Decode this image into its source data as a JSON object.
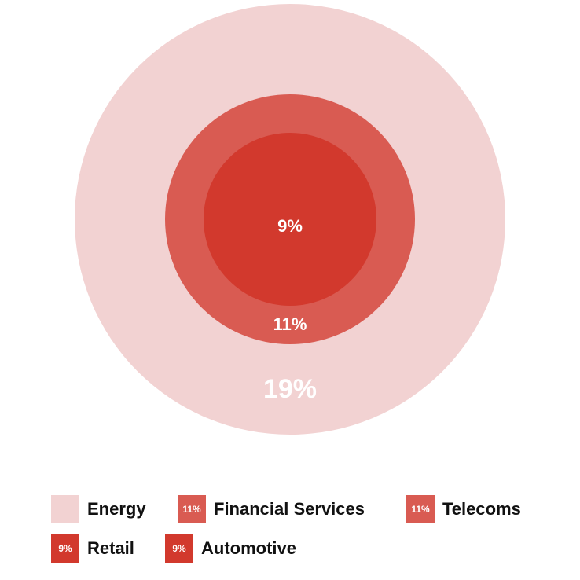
{
  "chart_data": {
    "type": "nested-circles",
    "title": "",
    "circles": [
      {
        "label": "19%",
        "value": 19,
        "color": "#f2d2d2"
      },
      {
        "label": "11%",
        "value": 11,
        "color": "#d95b52"
      },
      {
        "label": "9%",
        "value": 9,
        "color": "#d2392d"
      }
    ],
    "legend": {
      "placement": "bottom",
      "items": [
        {
          "name": "Energy",
          "badge": "",
          "color": "#f2d2d2"
        },
        {
          "name": "Financial Services",
          "badge": "11%",
          "color": "#d95b52"
        },
        {
          "name": "Telecoms",
          "badge": "11%",
          "color": "#d95b52"
        },
        {
          "name": "Retail",
          "badge": "9%",
          "color": "#d2392d"
        },
        {
          "name": "Automotive",
          "badge": "9%",
          "color": "#d2392d"
        }
      ]
    }
  }
}
